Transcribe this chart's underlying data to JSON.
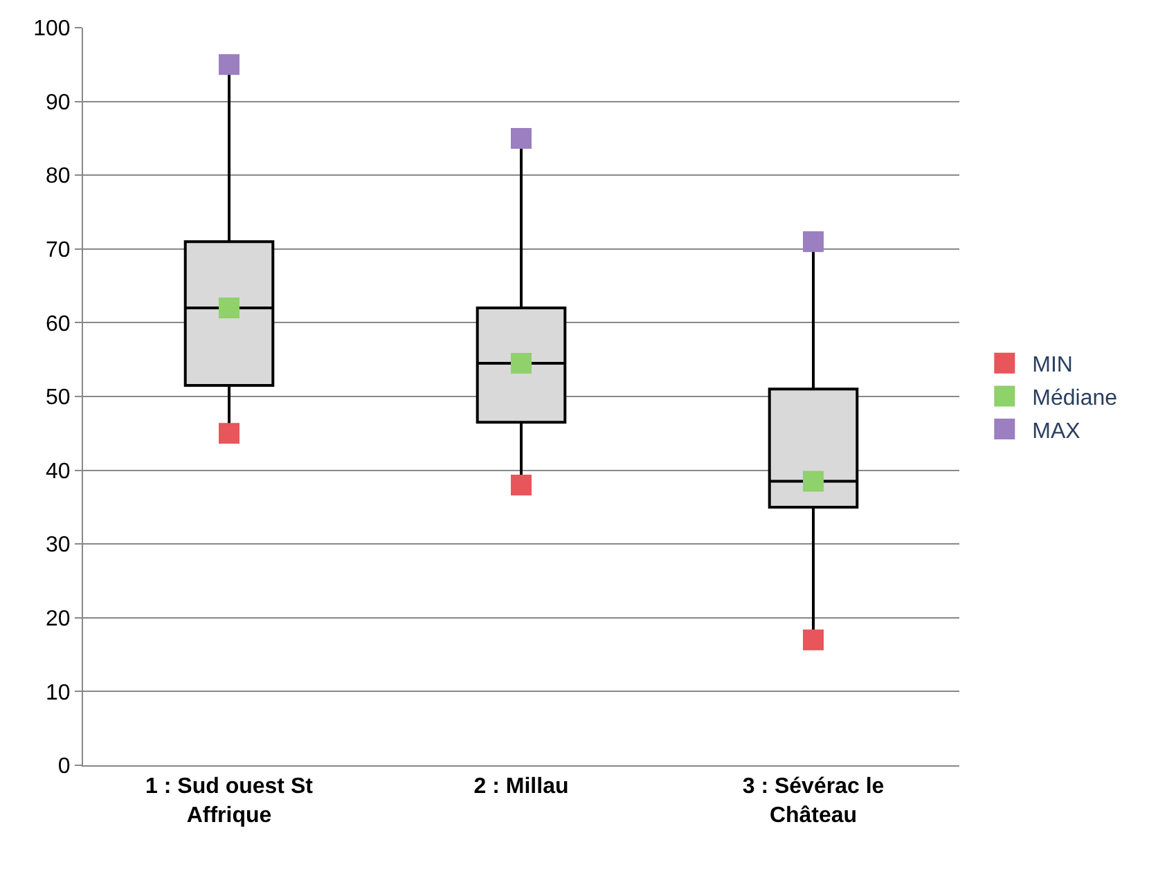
{
  "chart_data": {
    "type": "box",
    "categories": [
      "1 : Sud ouest St Affrique",
      "2 : Millau",
      "3 : Sévérac le Château"
    ],
    "boxes": [
      {
        "low": 45,
        "q1": 51.5,
        "median": 62,
        "q3": 71,
        "high": 95
      },
      {
        "low": 38,
        "q1": 46.5,
        "median": 54.5,
        "q3": 62,
        "high": 85
      },
      {
        "low": 17,
        "q1": 35,
        "median": 38.5,
        "q3": 51,
        "high": 71
      }
    ],
    "series": [
      {
        "name": "MIN",
        "type": "scatter",
        "color": "#e8555a",
        "values": [
          45,
          38,
          17
        ]
      },
      {
        "name": "Médiane",
        "type": "scatter",
        "color": "#8fd16a",
        "values": [
          62,
          54.5,
          38.5
        ]
      },
      {
        "name": "MAX",
        "type": "scatter",
        "color": "#9b7fc0",
        "values": [
          95,
          85,
          71
        ]
      }
    ],
    "ylim": [
      0,
      100
    ],
    "yticks": [
      0,
      10,
      20,
      30,
      40,
      50,
      60,
      70,
      80,
      90,
      100
    ],
    "grid": "y",
    "legend": "right",
    "marker": "square"
  }
}
